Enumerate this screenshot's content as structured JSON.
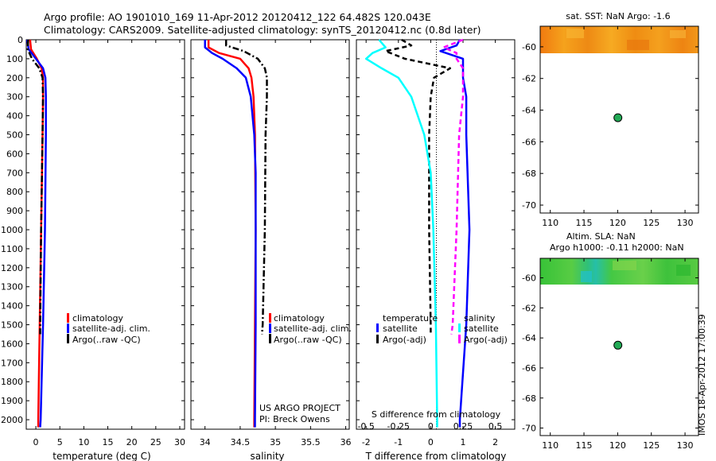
{
  "header": {
    "title_line1": "Argo profile: AO 1901010_169 11-Apr-2012 20120412_122 64.482S 120.043E",
    "title_line2": "Climatology: CARS2009. Satellite-adjusted climatology: synTS_20120412.nc (0.8d later)"
  },
  "colors": {
    "climatology": "#ff0000",
    "satellite_adj": "#0000ff",
    "argo": "#000000",
    "s_satellite": "#00ffff",
    "s_argo": "#ff00ff",
    "argo_marker": "#22aa55"
  },
  "depth_axis": {
    "range": [
      0,
      2050
    ],
    "ticks": [
      0,
      100,
      200,
      300,
      400,
      500,
      600,
      700,
      800,
      900,
      1000,
      1100,
      1200,
      1300,
      1400,
      1500,
      1600,
      1700,
      1800,
      1900,
      2000
    ]
  },
  "chart_data": [
    {
      "type": "line",
      "id": "temperature_profile",
      "xlabel": "temperature (deg C)",
      "xlim": [
        -2,
        31
      ],
      "xticks": [
        0,
        5,
        10,
        15,
        20,
        25,
        30
      ],
      "ylim": [
        0,
        2050
      ],
      "legend": {
        "position": "lower-right",
        "entries": [
          {
            "label": "climatology",
            "color": "#ff0000",
            "style": "solid"
          },
          {
            "label": "satellite-adj. clim.",
            "color": "#0000ff",
            "style": "solid"
          },
          {
            "label": "Argo(..raw -QC)",
            "color": "#000000",
            "style": "dashdot"
          }
        ]
      },
      "series": [
        {
          "name": "climatology",
          "depth": [
            0,
            50,
            100,
            150,
            200,
            300,
            500,
            1000,
            1500,
            2000,
            2040
          ],
          "values": [
            -1.2,
            -1.0,
            0.2,
            1.2,
            1.5,
            1.5,
            1.4,
            1.1,
            0.8,
            0.5,
            0.5
          ]
        },
        {
          "name": "satellite-adj. clim.",
          "depth": [
            0,
            50,
            100,
            150,
            200,
            300,
            500,
            1000,
            1500,
            2000,
            2040
          ],
          "values": [
            -1.8,
            -1.5,
            0.0,
            1.5,
            2.0,
            2.1,
            2.1,
            1.9,
            1.5,
            1.0,
            0.9
          ]
        },
        {
          "name": "Argo(..raw -QC)",
          "depth": [
            0,
            50,
            100,
            150,
            200,
            300,
            500,
            1000,
            1500,
            1550
          ],
          "values": [
            -1.6,
            -1.7,
            -0.8,
            0.7,
            1.4,
            1.5,
            1.4,
            1.1,
            0.9,
            0.9
          ]
        }
      ]
    },
    {
      "type": "line",
      "id": "salinity_profile",
      "xlabel": "salinity",
      "xlim": [
        33.8,
        36.05
      ],
      "xticks": [
        34,
        34.5,
        35,
        35.5,
        36
      ],
      "ylim": [
        0,
        2050
      ],
      "legend": {
        "position": "lower-right",
        "entries": [
          {
            "label": "climatology",
            "color": "#ff0000",
            "style": "solid"
          },
          {
            "label": "satellite-adj. clim.",
            "color": "#0000ff",
            "style": "solid"
          },
          {
            "label": "Argo(..raw -QC)",
            "color": "#000000",
            "style": "dashdot"
          }
        ]
      },
      "annotations": [
        "US ARGO PROJECT",
        "PI: Breck Owens"
      ],
      "series": [
        {
          "name": "climatology",
          "depth": [
            0,
            40,
            70,
            100,
            150,
            200,
            300,
            500,
            1000,
            1500,
            2000,
            2040
          ],
          "values": [
            34.05,
            34.05,
            34.2,
            34.5,
            34.62,
            34.66,
            34.69,
            34.71,
            34.72,
            34.71,
            34.7,
            34.7
          ]
        },
        {
          "name": "satellite-adj. clim.",
          "depth": [
            0,
            40,
            70,
            100,
            150,
            200,
            300,
            500,
            700,
            1000,
            1500,
            2000,
            2040
          ],
          "values": [
            34.0,
            34.0,
            34.1,
            34.25,
            34.45,
            34.58,
            34.65,
            34.7,
            34.72,
            34.72,
            34.72,
            34.71,
            34.71
          ]
        },
        {
          "name": "Argo(..raw -QC)",
          "depth": [
            0,
            30,
            60,
            100,
            150,
            200,
            300,
            500,
            1000,
            1500,
            1550
          ],
          "values": [
            34.3,
            34.3,
            34.55,
            34.75,
            34.85,
            34.88,
            34.88,
            34.86,
            34.85,
            34.82,
            34.81
          ]
        }
      ]
    },
    {
      "type": "line",
      "id": "difference_profile",
      "xlabel": "T difference from climatology",
      "xlabel_top": "S difference from climatology",
      "xlim": [
        -2.3,
        2.6
      ],
      "xticks": [
        -2,
        -1,
        0,
        1,
        2
      ],
      "xticks_top": [
        -0.5,
        -0.25,
        0,
        0.25,
        0.5
      ],
      "ylim": [
        0,
        2050
      ],
      "legend": {
        "position": "lower-center",
        "groups": [
          {
            "title": "temperature",
            "entries": [
              {
                "label": "satellite",
                "color": "#0000ff",
                "style": "solid"
              },
              {
                "label": "Argo(-adj)",
                "color": "#000000",
                "style": "dashed"
              }
            ]
          },
          {
            "title": "salinity",
            "entries": [
              {
                "label": "satellite",
                "color": "#00ffff",
                "style": "solid"
              },
              {
                "label": "Argo(-adj)",
                "color": "#ff00ff",
                "style": "dashed"
              }
            ]
          }
        ]
      },
      "series": [
        {
          "name": "T satellite",
          "depth": [
            0,
            30,
            60,
            100,
            150,
            200,
            300,
            500,
            1000,
            1500,
            2000,
            2040
          ],
          "values": [
            0.9,
            0.8,
            0.3,
            1.0,
            1.0,
            1.0,
            1.1,
            1.1,
            1.2,
            1.1,
            0.9,
            0.9
          ]
        },
        {
          "name": "T Argo(-adj)",
          "depth": [
            0,
            30,
            60,
            100,
            150,
            200,
            300,
            500,
            1000,
            1500,
            1550
          ],
          "values": [
            -0.9,
            -0.6,
            -1.4,
            -0.8,
            0.6,
            0.1,
            0.0,
            -0.05,
            -0.05,
            0.0,
            0.0
          ]
        },
        {
          "name": "S satellite",
          "depth": [
            0,
            40,
            70,
            100,
            150,
            200,
            300,
            500,
            700,
            1000,
            1500,
            2000,
            2040
          ],
          "values": [
            -0.4,
            -0.35,
            -0.45,
            -0.5,
            -0.38,
            -0.25,
            -0.15,
            -0.05,
            0.0,
            0.02,
            0.04,
            0.05,
            0.05
          ]
        },
        {
          "name": "S Argo(-adj)",
          "depth": [
            0,
            40,
            70,
            100,
            150,
            200,
            300,
            500,
            1000,
            1500,
            1550
          ],
          "values": [
            0.25,
            0.1,
            0.2,
            0.2,
            0.25,
            0.25,
            0.25,
            0.22,
            0.2,
            0.17,
            0.16
          ]
        }
      ]
    },
    {
      "type": "heatmap",
      "id": "sst_map",
      "title": "sat. SST: NaN Argo: -1.6",
      "xlim": [
        108.5,
        132
      ],
      "ylim": [
        -70.5,
        -58.7
      ],
      "xticks": [
        110,
        115,
        120,
        125,
        130
      ],
      "yticks": [
        -60,
        -62,
        -64,
        -66,
        -68,
        -70
      ],
      "data_band_lat": [
        -58.7,
        -60.3
      ],
      "argo_position": {
        "lon": 120.043,
        "lat": -64.482
      }
    },
    {
      "type": "heatmap",
      "id": "sla_map",
      "title_line1": "Altim. SLA: NaN",
      "title_line2": "Argo h1000: -0.11 h2000: NaN",
      "xlim": [
        108.5,
        132
      ],
      "ylim": [
        -70.5,
        -58.7
      ],
      "xticks": [
        110,
        115,
        120,
        125,
        130
      ],
      "yticks": [
        -60,
        -62,
        -64,
        -66,
        -68,
        -70
      ],
      "data_band_lat": [
        -58.7,
        -60.3
      ],
      "argo_position": {
        "lon": 120.043,
        "lat": -64.482
      }
    }
  ],
  "footer": {
    "stamp": "IMOS 18-Apr-2012 17:00:39"
  }
}
